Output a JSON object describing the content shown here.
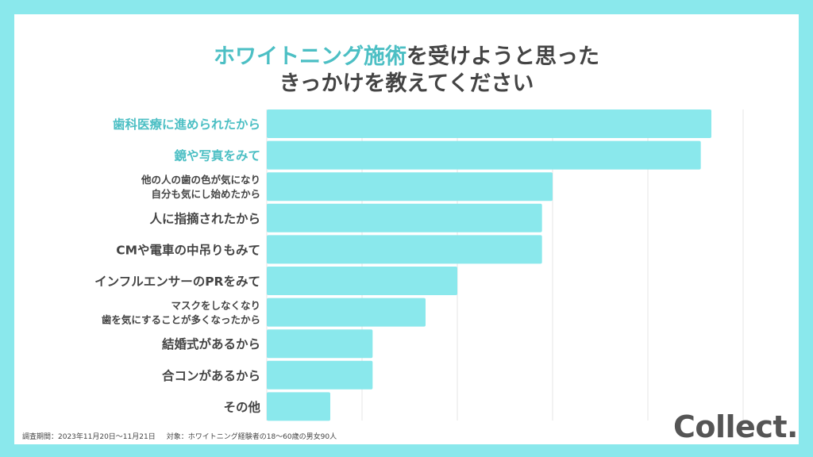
{
  "title": {
    "line1_accent": "ホワイトニング施術",
    "line1_rest": "を受けようと思った",
    "line2": "きっかけを教えてください"
  },
  "chart_data": {
    "type": "bar",
    "orientation": "horizontal",
    "categories": [
      [
        "歯科医療に進められたから"
      ],
      [
        "鏡や写真をみて"
      ],
      [
        "他の人の歯の色が気になり",
        "自分も気にし始めたから"
      ],
      [
        "人に指摘されたから"
      ],
      [
        "CMや電車の中吊りもみて"
      ],
      [
        "インフルエンサーのPRをみて"
      ],
      [
        "マスクをしなくなり",
        "歯を気にすることが多くなったから"
      ],
      [
        "結婚式があるから"
      ],
      [
        "合コンがあるから"
      ],
      [
        "その他"
      ]
    ],
    "values": [
      42,
      41,
      27,
      26,
      26,
      18,
      15,
      10,
      10,
      6
    ],
    "highlighted_categories": [
      0,
      1
    ],
    "xlim": [
      0,
      45
    ],
    "grid_step": 9,
    "grid": true,
    "colors": {
      "bar": "#8ae8ec",
      "highlight_label": "#4cbfc4",
      "label": "#444444",
      "grid": "#e6e6e6"
    }
  },
  "footer": {
    "period": "調査期間：2023年11月20日〜11月21日",
    "target": "対象：ホワイトニング経験者の18〜60歳の男女90人"
  },
  "logo": "Collect."
}
